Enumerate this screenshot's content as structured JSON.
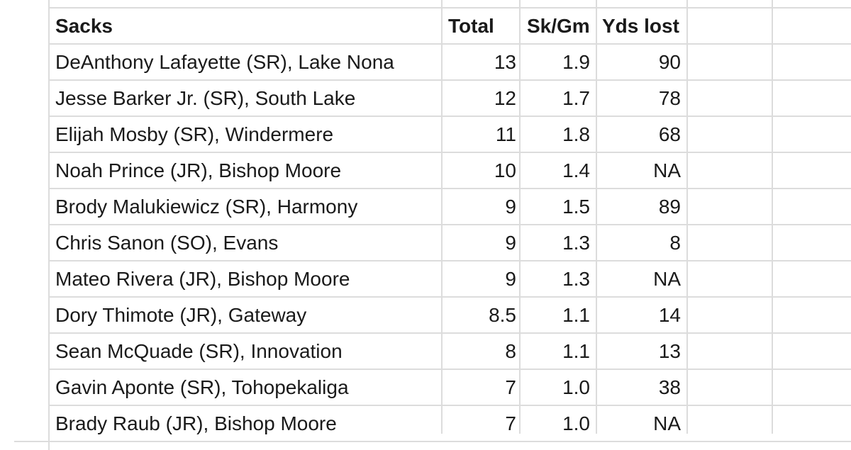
{
  "table": {
    "headers": {
      "name": "Sacks",
      "total": "Total",
      "sk_gm": "Sk/Gm",
      "yds_lost": "Yds lost"
    },
    "rows": [
      {
        "name": "DeAnthony Lafayette (SR), Lake Nona",
        "total": "13",
        "sk_gm": "1.9",
        "yds_lost": "90"
      },
      {
        "name": "Jesse Barker Jr. (SR), South Lake",
        "total": "12",
        "sk_gm": "1.7",
        "yds_lost": "78"
      },
      {
        "name": "Elijah Mosby (SR), Windermere",
        "total": "11",
        "sk_gm": "1.8",
        "yds_lost": "68"
      },
      {
        "name": "Noah Prince (JR), Bishop Moore",
        "total": "10",
        "sk_gm": "1.4",
        "yds_lost": "NA"
      },
      {
        "name": "Brody Malukiewicz (SR), Harmony",
        "total": "9",
        "sk_gm": "1.5",
        "yds_lost": "89"
      },
      {
        "name": "Chris Sanon (SO), Evans",
        "total": "9",
        "sk_gm": "1.3",
        "yds_lost": "8"
      },
      {
        "name": "Mateo Rivera (JR), Bishop Moore",
        "total": "9",
        "sk_gm": "1.3",
        "yds_lost": "NA"
      },
      {
        "name": "Dory Thimote (JR), Gateway",
        "total": "8.5",
        "sk_gm": "1.1",
        "yds_lost": "14"
      },
      {
        "name": "Sean McQuade (SR), Innovation",
        "total": "8",
        "sk_gm": "1.1",
        "yds_lost": "13"
      },
      {
        "name": "Gavin Aponte (SR), Tohopekaliga",
        "total": "7",
        "sk_gm": "1.0",
        "yds_lost": "38"
      },
      {
        "name": "Brady Raub (JR), Bishop Moore",
        "total": "7",
        "sk_gm": "1.0",
        "yds_lost": "NA"
      }
    ]
  }
}
